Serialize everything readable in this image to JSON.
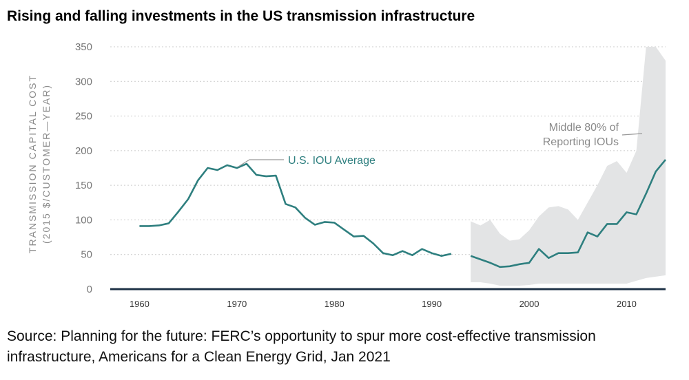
{
  "title": "Rising and falling investments in the US transmission infrastructure",
  "source": "Source: Planning for the future: FERC’s opportunity to spur more cost-effective transmission infrastructure, Americans for a Clean Energy Grid, Jan 2021",
  "colors": {
    "line": "#2e7f7f",
    "band": "#e3e4e5",
    "grid": "#cccccc",
    "axis": "#1f3347"
  },
  "chart_data": {
    "type": "line",
    "title": "Rising and falling investments in the US transmission infrastructure",
    "ylabel": [
      "TRANSMISSION CAPITAL COST",
      "(2015 $/CUSTOMER—YEAR)"
    ],
    "xlabel": "",
    "xlim": [
      1957,
      2014
    ],
    "ylim": [
      0,
      350
    ],
    "grid": true,
    "x_ticks": [
      1960,
      1970,
      1980,
      1990,
      2000,
      2010
    ],
    "x_tick_labels": [
      "1960",
      "1970",
      "1980",
      "1990",
      "2000",
      "2010"
    ],
    "y_ticks": [
      0,
      50,
      100,
      150,
      200,
      250,
      300,
      350
    ],
    "y_tick_labels": [
      "0",
      "50",
      "100",
      "150",
      "200",
      "250",
      "300",
      "350"
    ],
    "series": [
      {
        "name": "U.S. IOU Average",
        "segments": [
          {
            "x": [
              1960,
              1961,
              1962,
              1963,
              1964,
              1965,
              1966,
              1967,
              1968,
              1969,
              1970,
              1971,
              1972,
              1973,
              1974,
              1975,
              1976,
              1977,
              1978,
              1979,
              1980,
              1981,
              1982,
              1983,
              1984,
              1985,
              1986,
              1987,
              1988,
              1989,
              1990,
              1991,
              1992
            ],
            "y": [
              91,
              91,
              92,
              95,
              112,
              130,
              157,
              175,
              172,
              179,
              175,
              181,
              165,
              163,
              164,
              123,
              118,
              103,
              93,
              97,
              96,
              86,
              76,
              77,
              66,
              52,
              49,
              55,
              49,
              58,
              52,
              48,
              51
            ]
          },
          {
            "x": [
              1994,
              1995,
              1996,
              1997,
              1998,
              1999,
              2000,
              2001,
              2002,
              2003,
              2004,
              2005,
              2006,
              2007,
              2008,
              2009,
              2010,
              2011,
              2012,
              2013,
              2014
            ],
            "y": [
              48,
              43,
              38,
              32,
              33,
              36,
              38,
              58,
              45,
              52,
              52,
              53,
              82,
              76,
              94,
              94,
              111,
              108,
              138,
              170,
              187
            ]
          }
        ]
      },
      {
        "name": "Middle 80% of Reporting IOUs",
        "type": "band",
        "x": [
          1994,
          1995,
          1996,
          1997,
          1998,
          1999,
          2000,
          2001,
          2002,
          2003,
          2004,
          2005,
          2006,
          2007,
          2008,
          2009,
          2010,
          2011,
          2012,
          2013,
          2014
        ],
        "upper": [
          98,
          92,
          100,
          80,
          70,
          72,
          85,
          105,
          118,
          120,
          115,
          100,
          125,
          150,
          178,
          185,
          168,
          200,
          350,
          350,
          330
        ],
        "lower": [
          10,
          10,
          8,
          5,
          5,
          5,
          6,
          8,
          8,
          8,
          8,
          8,
          8,
          8,
          8,
          8,
          8,
          12,
          16,
          18,
          20
        ]
      }
    ],
    "annotations": [
      {
        "text": "U.S. IOU Average",
        "series": "U.S. IOU Average"
      },
      {
        "text": "Middle 80% of",
        "series": "Middle 80% of Reporting IOUs"
      },
      {
        "text": "Reporting IOUs",
        "series": "Middle 80% of Reporting IOUs"
      }
    ]
  }
}
